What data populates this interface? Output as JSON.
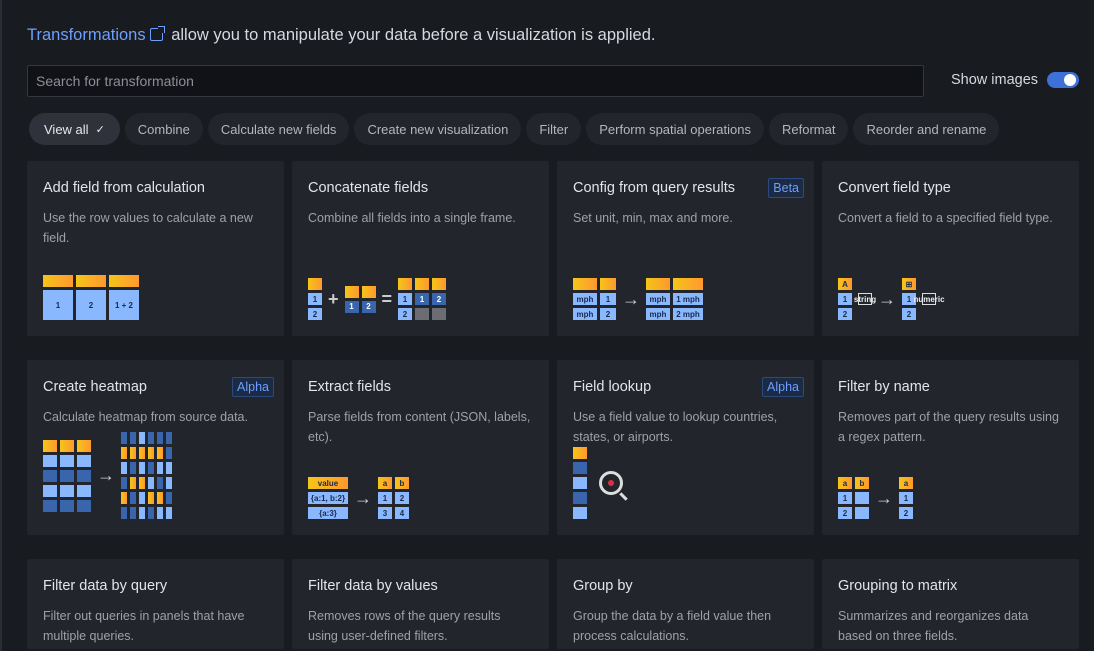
{
  "intro": {
    "link": "Transformations",
    "text": "allow you to manipulate your data before a visualization is applied."
  },
  "search": {
    "placeholder": "Search for transformation",
    "value": ""
  },
  "show_images": {
    "label": "Show images",
    "on": true
  },
  "colors": {
    "accent": "#3d71d9",
    "link": "#6e9fff",
    "orange": "#ff9830",
    "yellow": "#f5c518",
    "light_blue": "#8ab8ff",
    "dark_blue": "#3865ab"
  },
  "chips": [
    {
      "label": "View all",
      "active": true
    },
    {
      "label": "Combine"
    },
    {
      "label": "Calculate new fields"
    },
    {
      "label": "Create new visualization"
    },
    {
      "label": "Filter"
    },
    {
      "label": "Perform spatial operations"
    },
    {
      "label": "Reformat"
    },
    {
      "label": "Reorder and rename"
    }
  ],
  "cards": [
    {
      "title": "Add field from calculation",
      "desc": "Use the row values to calculate a new field.",
      "badge": "",
      "ill": [
        {
          "cols": [
            {
              "w": 30,
              "cells": [
                [
                  "o",
                  ""
                ],
                [
                  "l",
                  "1",
                  30
                ]
              ]
            },
            {
              "w": 30,
              "cells": [
                [
                  "o",
                  ""
                ],
                [
                  "l",
                  "2",
                  30
                ]
              ]
            },
            {
              "w": 30,
              "cells": [
                [
                  "o",
                  ""
                ],
                [
                  "l",
                  "1 + 2",
                  30
                ]
              ]
            }
          ]
        }
      ]
    },
    {
      "title": "Concatenate fields",
      "desc": "Combine all fields into a single frame.",
      "badge": "",
      "ill": [
        {
          "cols": [
            {
              "cells": [
                [
                  "o",
                  ""
                ],
                [
                  "l",
                  "1"
                ],
                [
                  "l",
                  "2"
                ]
              ]
            }
          ]
        },
        {
          "op": "+"
        },
        {
          "cols": [
            {
              "cells": [
                [
                  "o",
                  ""
                ],
                [
                  "d",
                  "1"
                ]
              ]
            },
            {
              "cells": [
                [
                  "o",
                  ""
                ],
                [
                  "d",
                  "2"
                ]
              ]
            }
          ]
        },
        {
          "op": "="
        },
        {
          "cols": [
            {
              "cells": [
                [
                  "o",
                  ""
                ],
                [
                  "l",
                  "1"
                ],
                [
                  "l",
                  "2"
                ]
              ]
            },
            {
              "cells": [
                [
                  "o",
                  ""
                ],
                [
                  "d",
                  "1"
                ],
                [
                  "g",
                  ""
                ]
              ]
            },
            {
              "cells": [
                [
                  "o",
                  ""
                ],
                [
                  "d",
                  "2"
                ],
                [
                  "g",
                  ""
                ]
              ]
            }
          ]
        }
      ]
    },
    {
      "title": "Config from query results",
      "desc": "Set unit, min, max and more.",
      "badge": "Beta",
      "ill": [
        {
          "cols": [
            {
              "w": 24,
              "cells": [
                [
                  "o",
                  ""
                ],
                [
                  "l",
                  "mph"
                ],
                [
                  "l",
                  "mph"
                ]
              ]
            },
            {
              "w": 16,
              "cells": [
                [
                  "o",
                  ""
                ],
                [
                  "l",
                  "1"
                ],
                [
                  "l",
                  "2"
                ]
              ]
            }
          ]
        },
        {
          "op": "→"
        },
        {
          "cols": [
            {
              "w": 24,
              "cells": [
                [
                  "o",
                  ""
                ],
                [
                  "l",
                  "mph"
                ],
                [
                  "l",
                  "mph"
                ]
              ]
            },
            {
              "w": 30,
              "cells": [
                [
                  "o",
                  ""
                ],
                [
                  "l",
                  "1 mph"
                ],
                [
                  "l",
                  "2 mph"
                ]
              ]
            }
          ]
        }
      ]
    },
    {
      "title": "Convert field type",
      "desc": "Convert a field to a specified field type.",
      "badge": "",
      "ill": [
        {
          "cols": [
            {
              "cells": [
                [
                  "o",
                  "A"
                ],
                [
                  "l",
                  "1"
                ],
                [
                  "l",
                  "2"
                ]
              ]
            }
          ]
        },
        {
          "box": "string"
        },
        {
          "op": "→"
        },
        {
          "cols": [
            {
              "cells": [
                [
                  "o",
                  "⊞"
                ],
                [
                  "l",
                  "1"
                ],
                [
                  "l",
                  "2"
                ]
              ]
            }
          ]
        },
        {
          "box": "numeric"
        }
      ]
    },
    {
      "title": "Create heatmap",
      "desc": "Calculate heatmap from source data.",
      "badge": "Alpha",
      "ill": [
        {
          "cols": [
            {
              "w": 14,
              "cells": [
                [
                  "o",
                  ""
                ],
                [
                  "l",
                  ""
                ],
                [
                  "d",
                  ""
                ],
                [
                  "l",
                  ""
                ],
                [
                  "d",
                  ""
                ]
              ]
            },
            {
              "w": 14,
              "cells": [
                [
                  "o",
                  ""
                ],
                [
                  "l",
                  ""
                ],
                [
                  "d",
                  ""
                ],
                [
                  "l",
                  ""
                ],
                [
                  "d",
                  ""
                ]
              ]
            },
            {
              "w": 14,
              "cells": [
                [
                  "o",
                  ""
                ],
                [
                  "l",
                  ""
                ],
                [
                  "d",
                  ""
                ],
                [
                  "l",
                  ""
                ],
                [
                  "d",
                  ""
                ]
              ]
            }
          ]
        },
        {
          "op": "→"
        },
        {
          "cols": [
            {
              "w": 6,
              "cells": [
                [
                  "d",
                  ""
                ],
                [
                  "o",
                  ""
                ],
                [
                  "l",
                  ""
                ],
                [
                  "d",
                  ""
                ],
                [
                  "o",
                  ""
                ],
                [
                  "d",
                  ""
                ]
              ]
            },
            {
              "w": 6,
              "cells": [
                [
                  "d",
                  ""
                ],
                [
                  "o",
                  ""
                ],
                [
                  "d",
                  ""
                ],
                [
                  "o",
                  ""
                ],
                [
                  "d",
                  ""
                ],
                [
                  "d",
                  ""
                ]
              ]
            },
            {
              "w": 6,
              "cells": [
                [
                  "l",
                  ""
                ],
                [
                  "o",
                  ""
                ],
                [
                  "l",
                  ""
                ],
                [
                  "o",
                  ""
                ],
                [
                  "l",
                  ""
                ],
                [
                  "l",
                  ""
                ]
              ]
            },
            {
              "w": 6,
              "cells": [
                [
                  "d",
                  ""
                ],
                [
                  "o",
                  ""
                ],
                [
                  "d",
                  ""
                ],
                [
                  "l",
                  ""
                ],
                [
                  "o",
                  ""
                ],
                [
                  "d",
                  ""
                ]
              ]
            },
            {
              "w": 6,
              "cells": [
                [
                  "d",
                  ""
                ],
                [
                  "o",
                  ""
                ],
                [
                  "l",
                  ""
                ],
                [
                  "d",
                  ""
                ],
                [
                  "o",
                  ""
                ],
                [
                  "l",
                  ""
                ]
              ]
            },
            {
              "w": 6,
              "cells": [
                [
                  "d",
                  ""
                ],
                [
                  "d",
                  ""
                ],
                [
                  "l",
                  ""
                ],
                [
                  "l",
                  ""
                ],
                [
                  "d",
                  ""
                ],
                [
                  "l",
                  ""
                ]
              ]
            }
          ]
        }
      ]
    },
    {
      "title": "Extract fields",
      "desc": "Parse fields from content (JSON, labels, etc).",
      "badge": "",
      "ill": [
        {
          "cols": [
            {
              "w": 40,
              "cells": [
                [
                  "o",
                  "value"
                ],
                [
                  "l",
                  "{a:1, b:2}"
                ],
                [
                  "l",
                  "{a:3}"
                ]
              ]
            }
          ]
        },
        {
          "op": "→"
        },
        {
          "cols": [
            {
              "cells": [
                [
                  "o",
                  "a"
                ],
                [
                  "l",
                  "1"
                ],
                [
                  "l",
                  "3"
                ]
              ]
            },
            {
              "cells": [
                [
                  "o",
                  "b"
                ],
                [
                  "l",
                  "2"
                ],
                [
                  "l",
                  "4"
                ]
              ]
            }
          ]
        }
      ]
    },
    {
      "title": "Field lookup",
      "desc": "Use a field value to lookup countries, states, or airports.",
      "badge": "Alpha",
      "ill": [
        {
          "cols": [
            {
              "cells": [
                [
                  "o",
                  ""
                ],
                [
                  "d",
                  ""
                ],
                [
                  "l",
                  ""
                ],
                [
                  "d",
                  ""
                ],
                [
                  "l",
                  ""
                ]
              ]
            }
          ]
        },
        {
          "mag": true
        }
      ]
    },
    {
      "title": "Filter by name",
      "desc": "Removes part of the query results using a regex pattern.",
      "badge": "",
      "ill": [
        {
          "cols": [
            {
              "cells": [
                [
                  "o",
                  "a"
                ],
                [
                  "l",
                  "1"
                ],
                [
                  "l",
                  "2"
                ]
              ]
            },
            {
              "cells": [
                [
                  "o",
                  "b"
                ],
                [
                  "l",
                  ""
                ],
                [
                  "l",
                  ""
                ]
              ]
            }
          ]
        },
        {
          "op": "→"
        },
        {
          "cols": [
            {
              "cells": [
                [
                  "o",
                  "a"
                ],
                [
                  "l",
                  "1"
                ],
                [
                  "l",
                  "2"
                ]
              ]
            }
          ]
        }
      ]
    },
    {
      "title": "Filter data by query",
      "desc": "Filter out queries in panels that have multiple queries.",
      "badge": ""
    },
    {
      "title": "Filter data by values",
      "desc": "Removes rows of the query results using user-defined filters.",
      "badge": ""
    },
    {
      "title": "Group by",
      "desc": "Group the data by a field value then process calculations.",
      "badge": ""
    },
    {
      "title": "Grouping to matrix",
      "desc": "Summarizes and reorganizes data based on three fields.",
      "badge": ""
    }
  ]
}
